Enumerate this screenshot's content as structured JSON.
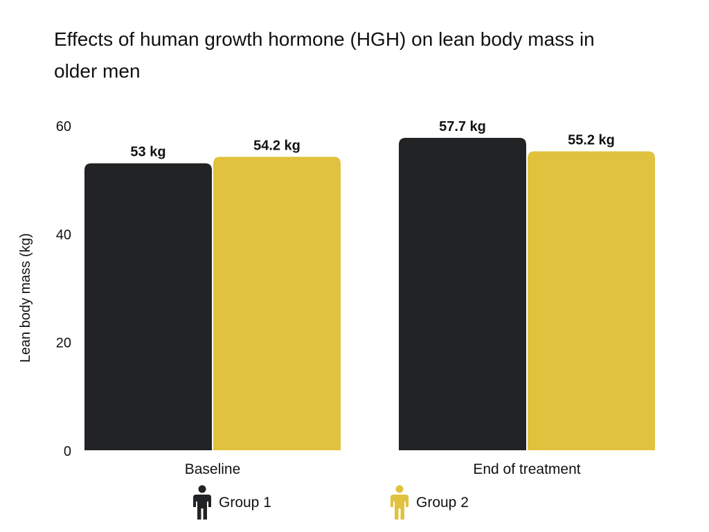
{
  "chart_data": {
    "type": "bar",
    "title": "Effects of human growth hormone (HGH) on lean body mass in older men",
    "ylabel": "Lean body mass (kg)",
    "xlabel": "",
    "ylim": [
      0,
      60
    ],
    "yticks": [
      0,
      20,
      40,
      60
    ],
    "categories": [
      "Baseline",
      "End of treatment"
    ],
    "series": [
      {
        "name": "Group 1",
        "color": "#222325",
        "values": [
          53,
          57.7
        ],
        "labels": [
          "53 kg",
          "57.7 kg"
        ]
      },
      {
        "name": "Group 2",
        "color": "#e0c23e",
        "values": [
          54.2,
          55.2
        ],
        "labels": [
          "54.2 kg",
          "55.2 kg"
        ]
      }
    ],
    "grid": false,
    "legend_position": "bottom",
    "legend_icon": "person-icon"
  }
}
